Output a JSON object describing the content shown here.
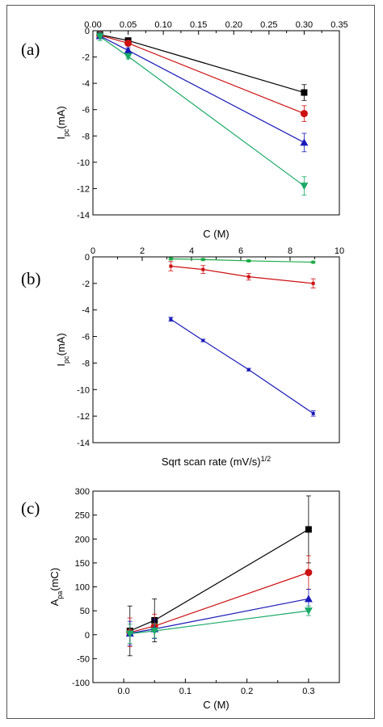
{
  "chart_data": [
    {
      "panel_label": "(a)",
      "type": "line",
      "xlabel": "C (M)",
      "ylabel": "I",
      "ylabel_sub": "pc",
      "ylabel_unit": "(mA)",
      "x_axis_position": "top",
      "xlim": [
        0,
        0.35
      ],
      "ylim": [
        -14,
        0
      ],
      "xticks": [
        0,
        0.05,
        0.1,
        0.15,
        0.2,
        0.25,
        0.3,
        0.35
      ],
      "xtick_labels": [
        "0.00",
        "0.05",
        "0.10",
        "0.15",
        "0.20",
        "0.25",
        "0.30",
        "0.35"
      ],
      "yticks": [
        0,
        -2,
        -4,
        -6,
        -8,
        -10,
        -12,
        -14
      ],
      "ytick_labels": [
        "0",
        "-2",
        "-4",
        "-6",
        "-8",
        "-10",
        "-12",
        "-14"
      ],
      "series": [
        {
          "color": "#000000",
          "marker": "square",
          "x": [
            0.01,
            0.05,
            0.3
          ],
          "y": [
            -0.3,
            -0.75,
            -4.7
          ],
          "err": [
            0.2,
            0.2,
            0.6
          ]
        },
        {
          "color": "#cc1111",
          "marker": "circle",
          "x": [
            0.01,
            0.05,
            0.3
          ],
          "y": [
            -0.35,
            -0.95,
            -6.3
          ],
          "err": [
            0.2,
            0.2,
            0.6
          ]
        },
        {
          "color": "#1a1ab8",
          "marker": "triangle-up",
          "x": [
            0.01,
            0.05,
            0.3
          ],
          "y": [
            -0.4,
            -1.5,
            -8.5
          ],
          "err": [
            0.2,
            0.2,
            0.7
          ]
        },
        {
          "color": "#1aaa66",
          "marker": "triangle-down",
          "x": [
            0.01,
            0.05,
            0.3
          ],
          "y": [
            -0.45,
            -1.95,
            -11.8
          ],
          "err": [
            0.3,
            0.2,
            0.7
          ]
        }
      ]
    },
    {
      "panel_label": "(b)",
      "type": "line",
      "xlabel": "Sqrt scan rate (mV/s)",
      "xlabel_sup": "1/2",
      "ylabel": "I",
      "ylabel_sub": "pc",
      "ylabel_unit": "(mA)",
      "x_axis_position": "top",
      "xlim": [
        0,
        10
      ],
      "ylim": [
        -14,
        0
      ],
      "xticks": [
        0,
        2,
        4,
        6,
        8,
        10
      ],
      "xtick_labels": [
        "0",
        "2",
        "4",
        "6",
        "8",
        "10"
      ],
      "yticks": [
        0,
        -2,
        -4,
        -6,
        -8,
        -10,
        -12,
        -14
      ],
      "ytick_labels": [
        "0",
        "-2",
        "-4",
        "-6",
        "-8",
        "-10",
        "-12",
        "-14"
      ],
      "series": [
        {
          "color": "#1aaa44",
          "marker": "small-square",
          "x": [
            3.16,
            4.47,
            6.32,
            8.94
          ],
          "y": [
            -0.15,
            -0.2,
            -0.3,
            -0.4
          ],
          "err": [
            0.05,
            0.05,
            0.05,
            0.05
          ]
        },
        {
          "color": "#cc1111",
          "marker": "small-square",
          "x": [
            3.16,
            4.47,
            6.32,
            8.94
          ],
          "y": [
            -0.7,
            -0.95,
            -1.5,
            -2.0
          ],
          "err": [
            0.35,
            0.3,
            0.25,
            0.35
          ]
        },
        {
          "color": "#1a1ab8",
          "marker": "small-square",
          "x": [
            3.16,
            4.47,
            6.32,
            8.94
          ],
          "y": [
            -4.7,
            -6.3,
            -8.5,
            -11.8
          ],
          "err": [
            0.15,
            0.1,
            0.1,
            0.2
          ]
        }
      ]
    },
    {
      "panel_label": "(c)",
      "type": "line",
      "xlabel": "C (M)",
      "ylabel": "A",
      "ylabel_sub": "pa",
      "ylabel_unit": "(mC)",
      "x_axis_position": "bottom",
      "xlim": [
        -0.05,
        0.35
      ],
      "ylim": [
        -100,
        300
      ],
      "xticks": [
        0,
        0.1,
        0.2,
        0.3
      ],
      "xtick_labels": [
        "0.0",
        "0.1",
        "0.2",
        "0.3"
      ],
      "yticks": [
        300,
        250,
        200,
        150,
        100,
        50,
        0,
        -50,
        -100
      ],
      "ytick_labels": [
        "300",
        "250",
        "200",
        "150",
        "100",
        "50",
        "0",
        "-50",
        "-100"
      ],
      "series": [
        {
          "color": "#000000",
          "marker": "square",
          "x": [
            0.01,
            0.05,
            0.3
          ],
          "y": [
            8,
            30,
            220
          ],
          "err": [
            52,
            45,
            70
          ]
        },
        {
          "color": "#cc1111",
          "marker": "circle",
          "x": [
            0.01,
            0.05,
            0.3
          ],
          "y": [
            5,
            18,
            130
          ],
          "err": [
            30,
            25,
            35
          ]
        },
        {
          "color": "#1a1ab8",
          "marker": "triangle-up",
          "x": [
            0.01,
            0.05,
            0.3
          ],
          "y": [
            3,
            12,
            75
          ],
          "err": [
            25,
            20,
            20
          ]
        },
        {
          "color": "#1aaa66",
          "marker": "triangle-down",
          "x": [
            0.01,
            0.05,
            0.3
          ],
          "y": [
            2,
            8,
            50
          ],
          "err": [
            20,
            15,
            10
          ]
        }
      ]
    }
  ]
}
